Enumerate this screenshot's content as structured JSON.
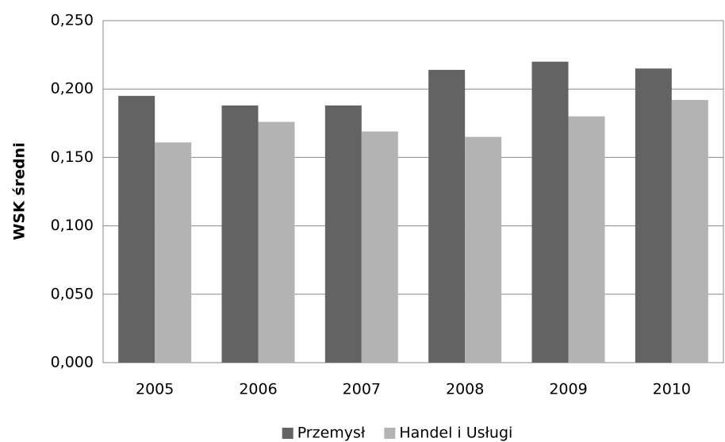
{
  "chart_data": {
    "type": "bar",
    "y_label": "WSK średni",
    "categories": [
      "2005",
      "2006",
      "2007",
      "2008",
      "2009",
      "2010"
    ],
    "series": [
      {
        "name": "Przemysł",
        "color": "#636363",
        "values": [
          0.195,
          0.188,
          0.188,
          0.214,
          0.22,
          0.215
        ]
      },
      {
        "name": "Handel i Usługi",
        "color": "#b3b3b3",
        "values": [
          0.161,
          0.176,
          0.169,
          0.165,
          0.18,
          0.192
        ]
      }
    ],
    "ylim": [
      0,
      0.25
    ],
    "yticks": [
      {
        "value": 0,
        "label": "0,000"
      },
      {
        "value": 0.05,
        "label": "0,050"
      },
      {
        "value": 0.1,
        "label": "0,100"
      },
      {
        "value": 0.15,
        "label": "0,150"
      },
      {
        "value": 0.2,
        "label": "0,200"
      },
      {
        "value": 0.25,
        "label": "0,250"
      }
    ],
    "grid": true,
    "legend": "bottom"
  }
}
